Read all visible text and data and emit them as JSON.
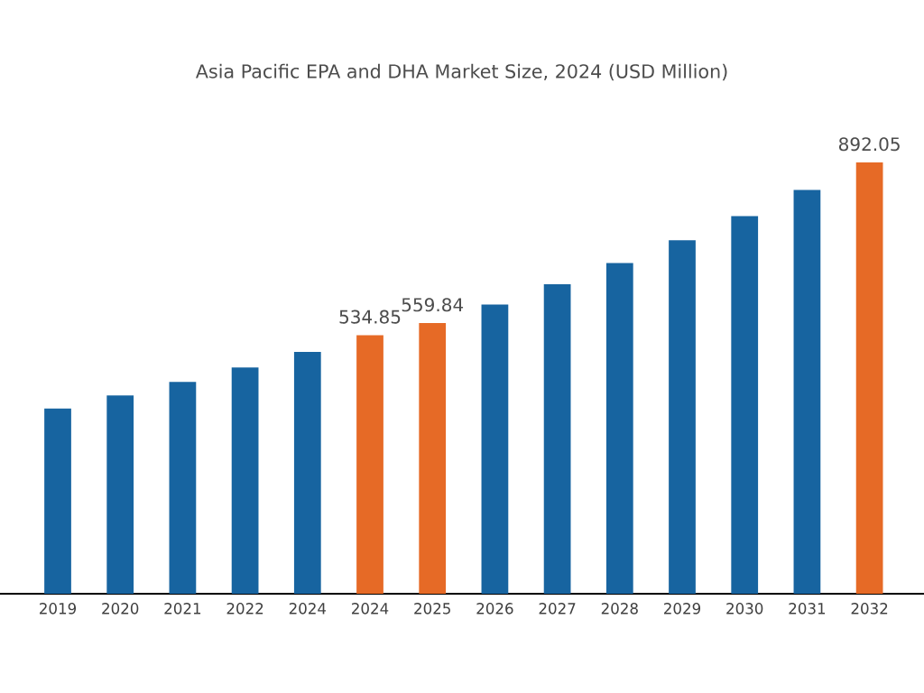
{
  "chart_data": {
    "type": "bar",
    "title": "Asia Pacific EPA and DHA Market Size, 2024 (USD Million)",
    "categories": [
      "2019",
      "2020",
      "2021",
      "2022",
      "2024",
      "2024",
      "2025",
      "2026",
      "2027",
      "2028",
      "2029",
      "2030",
      "2031",
      "2032"
    ],
    "values": [
      383,
      410,
      438,
      468,
      500,
      534.85,
      559.84,
      598,
      640,
      684,
      731,
      781,
      835,
      892.05
    ],
    "colors": [
      "#1764a0",
      "#1764a0",
      "#1764a0",
      "#1764a0",
      "#1764a0",
      "#e66a26",
      "#e66a26",
      "#1764a0",
      "#1764a0",
      "#1764a0",
      "#1764a0",
      "#1764a0",
      "#1764a0",
      "#e66a26"
    ],
    "value_labels": [
      null,
      null,
      null,
      null,
      null,
      "534.85",
      "559.84",
      null,
      null,
      null,
      null,
      null,
      null,
      "892.05"
    ]
  }
}
